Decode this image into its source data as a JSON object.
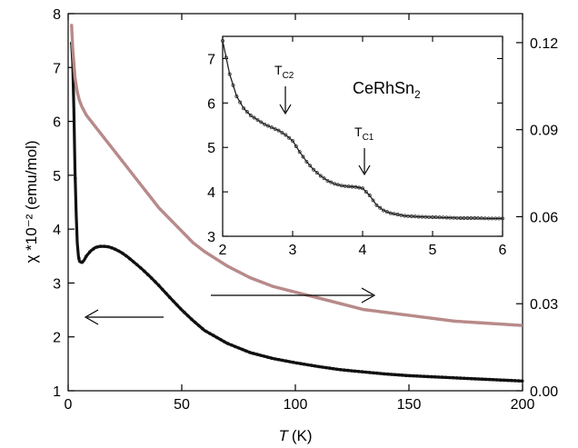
{
  "colors": {
    "main_left_series": "#111111",
    "main_right_series": "#b88a8a",
    "axes": "#000000",
    "inset_series": "#222222"
  },
  "chart_data": [
    {
      "type": "line",
      "xlabel_italic": "T",
      "xlabel_unit": "(K)",
      "ylabel_left": "χ *10⁻² (emu/mol)",
      "xlim": [
        0,
        200
      ],
      "ylim_left": [
        1,
        8
      ],
      "ylim_right": [
        0.0,
        0.13
      ],
      "x_ticks": [
        "0",
        "50",
        "100",
        "150",
        "200"
      ],
      "y_left_ticks": [
        "1",
        "2",
        "3",
        "4",
        "5",
        "6",
        "7",
        "8"
      ],
      "y_right_ticks": [
        "0.00",
        "0.03",
        "0.06",
        "0.09",
        "0.12"
      ],
      "series": [
        {
          "axis": "left",
          "x": [
            1.5,
            2,
            2.5,
            3,
            3.5,
            4,
            4.5,
            5,
            6,
            7,
            8,
            10,
            12,
            14,
            16,
            18,
            20,
            22,
            24,
            26,
            28,
            30,
            33,
            36,
            40,
            45,
            50,
            55,
            60,
            70,
            80,
            90,
            100,
            110,
            120,
            130,
            140,
            150,
            160,
            170,
            180,
            190,
            200
          ],
          "y": [
            7.45,
            7.1,
            6.2,
            5.1,
            4.3,
            3.75,
            3.5,
            3.4,
            3.38,
            3.42,
            3.5,
            3.6,
            3.66,
            3.68,
            3.68,
            3.67,
            3.64,
            3.6,
            3.55,
            3.49,
            3.42,
            3.35,
            3.24,
            3.12,
            2.95,
            2.72,
            2.5,
            2.3,
            2.12,
            1.88,
            1.71,
            1.6,
            1.52,
            1.45,
            1.39,
            1.35,
            1.31,
            1.28,
            1.26,
            1.24,
            1.22,
            1.2,
            1.18
          ]
        },
        {
          "axis": "right",
          "x": [
            1.5,
            2,
            3,
            4,
            5,
            6,
            8,
            10,
            12,
            15,
            18,
            20,
            25,
            30,
            35,
            40,
            45,
            50,
            55,
            60,
            70,
            80,
            90,
            100,
            110,
            120,
            130,
            140,
            150,
            160,
            170,
            180,
            190,
            200
          ],
          "y": [
            0.126,
            0.118,
            0.108,
            0.103,
            0.1,
            0.098,
            0.095,
            0.093,
            0.091,
            0.088,
            0.085,
            0.083,
            0.078,
            0.073,
            0.068,
            0.063,
            0.059,
            0.055,
            0.051,
            0.048,
            0.043,
            0.039,
            0.036,
            0.034,
            0.032,
            0.03,
            0.028,
            0.027,
            0.026,
            0.025,
            0.024,
            0.0235,
            0.023,
            0.0225
          ]
        }
      ],
      "arrows": [
        {
          "direction": "left",
          "target": "left-axis"
        },
        {
          "direction": "right",
          "target": "right-axis"
        }
      ]
    },
    {
      "type": "line",
      "xlim": [
        2,
        6
      ],
      "ylim": [
        3,
        7.5
      ],
      "x_ticks": [
        "2",
        "3",
        "4",
        "5",
        "6"
      ],
      "y_ticks": [
        "3",
        "4",
        "5",
        "6",
        "7"
      ],
      "series": [
        {
          "x": [
            2,
            2.1,
            2.2,
            2.3,
            2.4,
            2.5,
            2.6,
            2.7,
            2.8,
            2.9,
            3,
            3.1,
            3.2,
            3.3,
            3.4,
            3.5,
            3.6,
            3.7,
            3.8,
            3.9,
            4,
            4.1,
            4.2,
            4.3,
            4.4,
            4.5,
            4.6,
            4.8,
            5,
            5.2,
            5.4,
            5.6,
            5.8,
            6
          ],
          "y": [
            7.4,
            6.65,
            6.15,
            5.88,
            5.72,
            5.62,
            5.52,
            5.45,
            5.38,
            5.28,
            5.15,
            4.9,
            4.68,
            4.5,
            4.36,
            4.25,
            4.18,
            4.14,
            4.12,
            4.11,
            4.08,
            3.92,
            3.7,
            3.58,
            3.52,
            3.49,
            3.46,
            3.44,
            3.43,
            3.42,
            3.41,
            3.41,
            3.4,
            3.4
          ]
        }
      ],
      "annotations": {
        "compound": "CeRhSn",
        "compound_sub": "2",
        "tc2_main": "T",
        "tc2_sub": "C2",
        "tc2_x": 2.9,
        "tc1_main": "T",
        "tc1_sub": "C1",
        "tc1_x": 4.0
      }
    }
  ]
}
